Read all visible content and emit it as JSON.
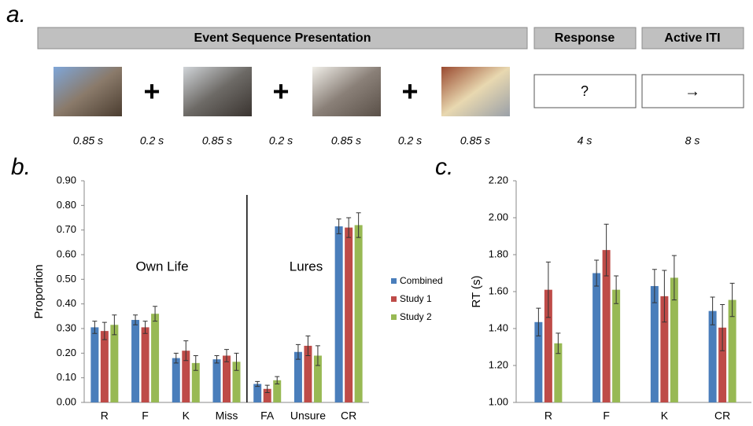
{
  "panel_a": {
    "label": "a.",
    "headers": [
      "Event Sequence Presentation",
      "Response",
      "Active ITI"
    ],
    "fixation": "+",
    "response_symbol": "?",
    "iti_symbol": "→",
    "durations": [
      "0.85 s",
      "0.2 s",
      "0.85 s",
      "0.2 s",
      "0.85 s",
      "0.2 s",
      "0.85 s",
      "4 s",
      "8 s"
    ]
  },
  "chart_data": [
    {
      "type": "bar",
      "label": "b.",
      "ylabel": "Proportion",
      "categories": [
        "R",
        "F",
        "K",
        "Miss",
        "FA",
        "Unsure",
        "CR"
      ],
      "annotations": [
        "Own Life",
        "Lures"
      ],
      "ylim": [
        0,
        0.9
      ],
      "yticks": [
        {
          "value": 0,
          "label": "0.00"
        },
        {
          "value": 0.1,
          "label": "0.10"
        },
        {
          "value": 0.2,
          "label": "0.20"
        },
        {
          "value": 0.3,
          "label": "0.30"
        },
        {
          "value": 0.4,
          "label": "0.40"
        },
        {
          "value": 0.5,
          "label": "0.50"
        },
        {
          "value": 0.6,
          "label": "0.60"
        },
        {
          "value": 0.7,
          "label": "0.70"
        },
        {
          "value": 0.8,
          "label": "0.80"
        },
        {
          "value": 0.9,
          "label": "0.90"
        }
      ],
      "legend": "right",
      "series": [
        {
          "name": "Combined",
          "color": "#4a7ebb",
          "values": [
            0.305,
            0.335,
            0.18,
            0.175,
            0.075,
            0.205,
            0.715
          ],
          "errors": [
            0.025,
            0.02,
            0.02,
            0.015,
            0.01,
            0.03,
            0.03
          ]
        },
        {
          "name": "Study 1",
          "color": "#be4b48",
          "values": [
            0.29,
            0.305,
            0.21,
            0.19,
            0.055,
            0.23,
            0.71
          ],
          "errors": [
            0.035,
            0.025,
            0.04,
            0.025,
            0.015,
            0.04,
            0.04
          ]
        },
        {
          "name": "Study 2",
          "color": "#98b954",
          "values": [
            0.315,
            0.36,
            0.16,
            0.165,
            0.09,
            0.19,
            0.72
          ],
          "errors": [
            0.04,
            0.03,
            0.03,
            0.035,
            0.015,
            0.04,
            0.05
          ]
        }
      ]
    },
    {
      "type": "bar",
      "label": "c.",
      "ylabel": "RT (s)",
      "categories": [
        "R",
        "F",
        "K",
        "CR"
      ],
      "ylim": [
        1,
        2.2
      ],
      "yticks": [
        {
          "value": 1,
          "label": "1.00"
        },
        {
          "value": 1.2,
          "label": "1.20"
        },
        {
          "value": 1.4,
          "label": "1.40"
        },
        {
          "value": 1.6,
          "label": "1.60"
        },
        {
          "value": 1.8,
          "label": "1.80"
        },
        {
          "value": 2,
          "label": "2.00"
        },
        {
          "value": 2.2,
          "label": "2.20"
        }
      ],
      "series": [
        {
          "color": "#4a7ebb",
          "values": [
            1.435,
            1.7,
            1.63,
            1.495
          ],
          "errors": [
            0.075,
            0.07,
            0.09,
            0.075
          ]
        },
        {
          "color": "#be4b48",
          "values": [
            1.61,
            1.825,
            1.575,
            1.405
          ],
          "errors": [
            0.15,
            0.14,
            0.14,
            0.125
          ]
        },
        {
          "color": "#98b954",
          "values": [
            1.32,
            1.61,
            1.675,
            1.555
          ],
          "errors": [
            0.055,
            0.075,
            0.12,
            0.09
          ]
        }
      ]
    }
  ]
}
